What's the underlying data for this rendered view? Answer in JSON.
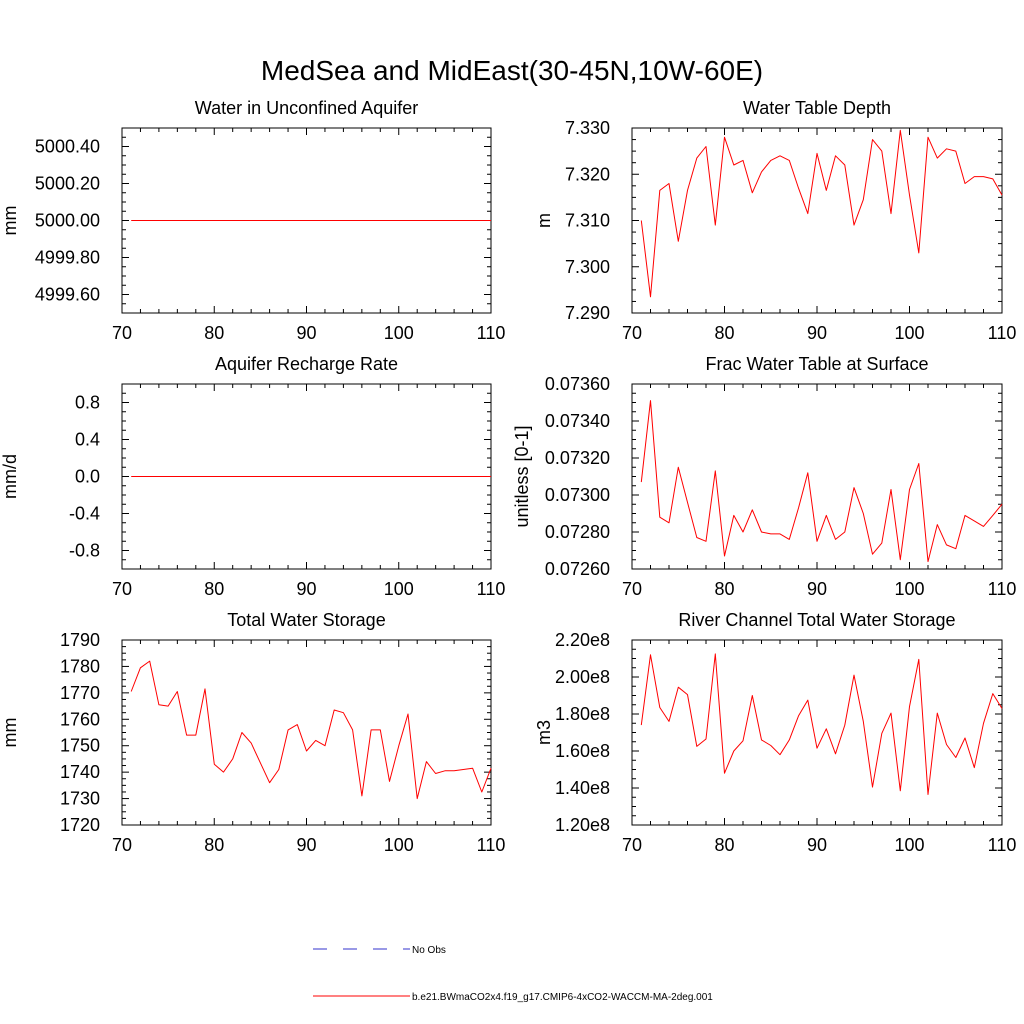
{
  "figure_title": "MedSea and MidEast(30-45N,10W-60E)",
  "colors": {
    "model": "#ff0000",
    "obs": "#3333cc",
    "axis": "#000000"
  },
  "legend": {
    "obs_label": "No Obs",
    "model_label": "b.e21.BWmaCO2x4.f19_g17.CMIP6-4xCO2-WACCM-MA-2deg.001"
  },
  "chart_data": [
    {
      "type": "line",
      "title": "Water in Unconfined Aquifer",
      "xlabel": "",
      "ylabel": "mm",
      "xlim": [
        70,
        110
      ],
      "ylim": [
        4999.5,
        5000.5
      ],
      "xticks": [
        70,
        80,
        90,
        100,
        110
      ],
      "yticks": [
        4999.6,
        4999.8,
        5000.0,
        5000.2,
        5000.4
      ],
      "ytick_labels": [
        "4999.60",
        "4999.80",
        "5000.00",
        "5000.20",
        "5000.40"
      ],
      "series": [
        {
          "name": "b.e21.BWmaCO2x4.f19_g17.CMIP6-4xCO2-WACCM-MA-2deg.001",
          "x": [
            71,
            110
          ],
          "values": [
            5000.0,
            5000.0
          ]
        }
      ]
    },
    {
      "type": "line",
      "title": "Water Table Depth",
      "xlabel": "",
      "ylabel": "m",
      "xlim": [
        70,
        110
      ],
      "ylim": [
        7.29,
        7.33
      ],
      "xticks": [
        70,
        80,
        90,
        100,
        110
      ],
      "yticks": [
        7.29,
        7.3,
        7.31,
        7.32,
        7.33
      ],
      "ytick_labels": [
        "7.290",
        "7.300",
        "7.310",
        "7.320",
        "7.330"
      ],
      "series": [
        {
          "name": "b.e21.BWmaCO2x4.f19_g17.CMIP6-4xCO2-WACCM-MA-2deg.001",
          "x": [
            71,
            72,
            73,
            74,
            75,
            76,
            77,
            78,
            79,
            80,
            81,
            82,
            83,
            84,
            85,
            86,
            87,
            88,
            89,
            90,
            91,
            92,
            93,
            94,
            95,
            96,
            97,
            98,
            99,
            100,
            101,
            102,
            103,
            104,
            105,
            106,
            107,
            108,
            109,
            110
          ],
          "values": [
            7.31,
            7.2935,
            7.3165,
            7.318,
            7.3055,
            7.3165,
            7.3235,
            7.326,
            7.309,
            7.328,
            7.322,
            7.323,
            7.316,
            7.3205,
            7.323,
            7.324,
            7.323,
            7.317,
            7.3115,
            7.3245,
            7.3165,
            7.324,
            7.322,
            7.309,
            7.3145,
            7.3275,
            7.325,
            7.3115,
            7.3295,
            7.3155,
            7.303,
            7.328,
            7.3235,
            7.3255,
            7.325,
            7.318,
            7.3195,
            7.3195,
            7.319,
            7.3155
          ]
        }
      ]
    },
    {
      "type": "line",
      "title": "Aquifer Recharge Rate",
      "xlabel": "",
      "ylabel": "mm/d",
      "xlim": [
        70,
        110
      ],
      "ylim": [
        -1.0,
        1.0
      ],
      "xticks": [
        70,
        80,
        90,
        100,
        110
      ],
      "yticks": [
        -0.8,
        -0.4,
        0.0,
        0.4,
        0.8
      ],
      "ytick_labels": [
        "-0.8",
        "-0.4",
        "0.0",
        "0.4",
        "0.8"
      ],
      "series": [
        {
          "name": "b.e21.BWmaCO2x4.f19_g17.CMIP6-4xCO2-WACCM-MA-2deg.001",
          "x": [
            71,
            110
          ],
          "values": [
            0.0,
            0.0
          ]
        }
      ]
    },
    {
      "type": "line",
      "title": "Frac Water Table at Surface",
      "xlabel": "",
      "ylabel": "unitless [0-1]",
      "xlim": [
        70,
        110
      ],
      "ylim": [
        0.0726,
        0.0736
      ],
      "xticks": [
        70,
        80,
        90,
        100,
        110
      ],
      "yticks": [
        0.0726,
        0.0728,
        0.073,
        0.0732,
        0.0734,
        0.0736
      ],
      "ytick_labels": [
        "0.07260",
        "0.07280",
        "0.07300",
        "0.07320",
        "0.07340",
        "0.07360"
      ],
      "series": [
        {
          "name": "b.e21.BWmaCO2x4.f19_g17.CMIP6-4xCO2-WACCM-MA-2deg.001",
          "x": [
            71,
            72,
            73,
            74,
            75,
            76,
            77,
            78,
            79,
            80,
            81,
            82,
            83,
            84,
            85,
            86,
            87,
            88,
            89,
            90,
            91,
            92,
            93,
            94,
            95,
            96,
            97,
            98,
            99,
            100,
            101,
            102,
            103,
            104,
            105,
            106,
            107,
            108,
            109,
            110
          ],
          "values": [
            0.07307,
            0.07351,
            0.07288,
            0.07285,
            0.07315,
            0.07296,
            0.07277,
            0.07275,
            0.07313,
            0.07267,
            0.07289,
            0.0728,
            0.07292,
            0.0728,
            0.07279,
            0.07279,
            0.07276,
            0.07293,
            0.07312,
            0.07275,
            0.07289,
            0.07276,
            0.0728,
            0.07304,
            0.0729,
            0.07268,
            0.07274,
            0.07303,
            0.07265,
            0.07303,
            0.07317,
            0.07264,
            0.07284,
            0.07273,
            0.07271,
            0.07289,
            0.07286,
            0.07283,
            0.07289,
            0.07295
          ]
        }
      ]
    },
    {
      "type": "line",
      "title": "Total Water Storage",
      "xlabel": "",
      "ylabel": "mm",
      "xlim": [
        70,
        110
      ],
      "ylim": [
        1720,
        1790
      ],
      "xticks": [
        70,
        80,
        90,
        100,
        110
      ],
      "yticks": [
        1720,
        1730,
        1740,
        1750,
        1760,
        1770,
        1780,
        1790
      ],
      "ytick_labels": [
        "1720",
        "1730",
        "1740",
        "1750",
        "1760",
        "1770",
        "1780",
        "1790"
      ],
      "series": [
        {
          "name": "b.e21.BWmaCO2x4.f19_g17.CMIP6-4xCO2-WACCM-MA-2deg.001",
          "x": [
            71,
            72,
            73,
            74,
            75,
            76,
            77,
            78,
            79,
            80,
            81,
            82,
            83,
            84,
            85,
            86,
            87,
            88,
            89,
            90,
            91,
            92,
            93,
            94,
            95,
            96,
            97,
            98,
            99,
            100,
            101,
            102,
            103,
            104,
            105,
            106,
            107,
            108,
            109,
            110
          ],
          "values": [
            1770.5,
            1779.5,
            1782,
            1765.5,
            1765,
            1770.5,
            1754,
            1754,
            1771.5,
            1743,
            1740,
            1745,
            1755,
            1751,
            1743.5,
            1736,
            1741,
            1756,
            1758,
            1748,
            1752,
            1750,
            1763.5,
            1762.5,
            1756,
            1731,
            1756,
            1756,
            1736.5,
            1750,
            1762,
            1730,
            1744,
            1739.5,
            1740.5,
            1740.5,
            1741,
            1741.5,
            1732.5,
            1741.5
          ]
        }
      ]
    },
    {
      "type": "line",
      "title": "River Channel Total Water Storage",
      "xlabel": "",
      "ylabel": "m3",
      "xlim": [
        70,
        110
      ],
      "ylim": [
        120000000,
        220000000
      ],
      "xticks": [
        70,
        80,
        90,
        100,
        110
      ],
      "yticks": [
        120000000,
        140000000,
        160000000,
        180000000,
        200000000,
        220000000
      ],
      "ytick_labels": [
        "1.20e8",
        "1.40e8",
        "1.60e8",
        "1.80e8",
        "2.00e8",
        "2.20e8"
      ],
      "series": [
        {
          "name": "b.e21.BWmaCO2x4.f19_g17.CMIP6-4xCO2-WACCM-MA-2deg.001",
          "x": [
            71,
            72,
            73,
            74,
            75,
            76,
            77,
            78,
            79,
            80,
            81,
            82,
            83,
            84,
            85,
            86,
            87,
            88,
            89,
            90,
            91,
            92,
            93,
            94,
            95,
            96,
            97,
            98,
            99,
            100,
            101,
            102,
            103,
            104,
            105,
            106,
            107,
            108,
            109,
            110
          ],
          "values": [
            174000000,
            212000000,
            183500000,
            176000000,
            194500000,
            190500000,
            162500000,
            166500000,
            212500000,
            148000000,
            160000000,
            165500000,
            190000000,
            166000000,
            163000000,
            158000000,
            166000000,
            179000000,
            187500000,
            161500000,
            172000000,
            158500000,
            174000000,
            201000000,
            176000000,
            140500000,
            169500000,
            180500000,
            138500000,
            184000000,
            209500000,
            136500000,
            180500000,
            163500000,
            156500000,
            167000000,
            151000000,
            175000000,
            191000000,
            183000000
          ]
        }
      ]
    }
  ]
}
